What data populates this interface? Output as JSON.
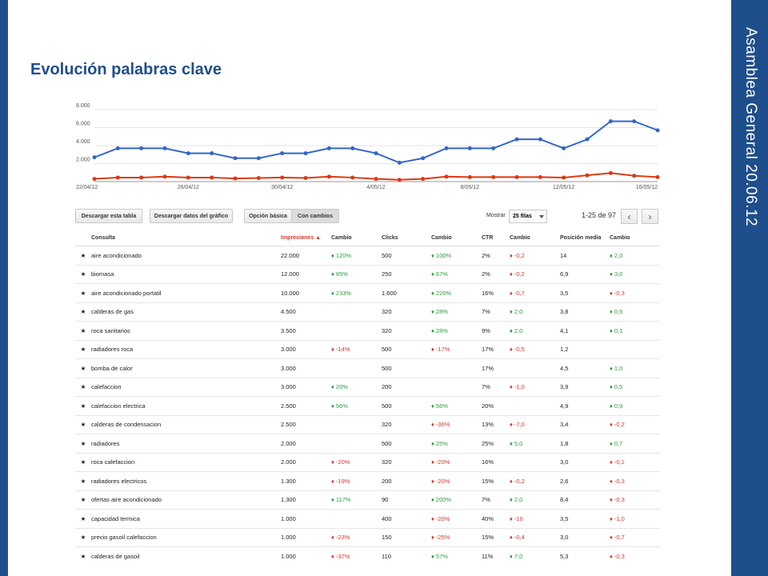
{
  "slide": {
    "title": "Evolución palabras clave",
    "side_title": "Asamblea General  20.06.12",
    "colors": {
      "accent": "#1f4e8c",
      "up": "#2a9d3a",
      "down": "#d9362b",
      "link": "#1155cc",
      "star": "#f1c232"
    }
  },
  "chart_data": {
    "type": "line",
    "x": [
      "22/04/12",
      "23/04/12",
      "24/04/12",
      "25/04/12",
      "26/04/12",
      "27/04/12",
      "28/04/12",
      "29/04/12",
      "30/04/12",
      "1/05/12",
      "2/05/12",
      "3/05/12",
      "4/05/12",
      "5/05/12",
      "6/05/12",
      "7/05/12",
      "8/05/12",
      "9/05/12",
      "10/05/12",
      "11/05/12",
      "12/05/12",
      "13/05/12",
      "14/05/12",
      "15/05/12",
      "16/05/12"
    ],
    "tick_labels": [
      "22/04/12",
      "26/04/12",
      "30/04/12",
      "4/05/12",
      "8/05/12",
      "12/05/12",
      "16/05/12"
    ],
    "y_ticks": [
      "8.000",
      "6.000",
      "4.000",
      "2.000"
    ],
    "ylim": [
      0,
      8000
    ],
    "grid": true,
    "series": [
      {
        "color": "#3366cc",
        "values": [
          2700,
          3700,
          3700,
          3700,
          3150,
          3150,
          2600,
          2600,
          3150,
          3150,
          3700,
          3700,
          3150,
          2100,
          2600,
          3700,
          3700,
          3700,
          4700,
          4700,
          3700,
          4700,
          6700,
          6700,
          5700
        ]
      },
      {
        "color": "#dc3912",
        "values": [
          300,
          450,
          450,
          550,
          450,
          450,
          350,
          400,
          450,
          400,
          550,
          450,
          300,
          200,
          300,
          550,
          500,
          500,
          500,
          500,
          450,
          700,
          950,
          650,
          500
        ]
      }
    ]
  },
  "toolbar": {
    "download_table": "Descargar esta tabla",
    "download_chart": "Descargar datos del gráfico",
    "basic_option": "Opción básica",
    "with_changes": "Con cambios",
    "show_label": "Mostrar",
    "rows_select": "25 filas",
    "pager_range": "1-25 de 97",
    "prev_icon": "‹",
    "next_icon": "›"
  },
  "table": {
    "headers": [
      "",
      "Consulta",
      "Impresiones ▲",
      "Cambio",
      "Clicks",
      "Cambio",
      "CTR",
      "Cambio",
      "Posición media",
      "Cambio"
    ],
    "rows": [
      [
        "aire acondicionado",
        "22.000",
        "♦ 120%",
        "500",
        "♦ 100%",
        "2%",
        "♦ -0,2",
        "14",
        "♦ 2,0"
      ],
      [
        "biomasa",
        "12.000",
        "♦ 85%",
        "250",
        "♦ 67%",
        "2%",
        "♦ -0,2",
        "6,9",
        "♦ 3,0"
      ],
      [
        "aire acondicionado portatil",
        "10.000",
        "♦ 233%",
        "1.600",
        "♦ 220%",
        "16%",
        "♦ -0,7",
        "3,5",
        "♦ -0,3"
      ],
      [
        "calderas de gas",
        "4.500",
        "",
        "320",
        "♦ 28%",
        "7%",
        "♦ 2,0",
        "3,8",
        "♦ 0,5"
      ],
      [
        "roca sanitarios",
        "3.500",
        "",
        "320",
        "♦ 28%",
        "9%",
        "♦ 2,0",
        "4,1",
        "♦ 0,1"
      ],
      [
        "radiadores roca",
        "3.000",
        "♦ -14%",
        "500",
        "♦ -17%",
        "17%",
        "♦ -0,5",
        "1,2",
        ""
      ],
      [
        "bomba de calor",
        "3.000",
        "",
        "500",
        "",
        "17%",
        "",
        "4,5",
        "♦ 1,0"
      ],
      [
        "calefaccion",
        "3.000",
        "♦ 20%",
        "200",
        "",
        "7%",
        "♦ -1,0",
        "3,9",
        "♦ 0,5"
      ],
      [
        "calefaccion electrica",
        "2.500",
        "♦ 56%",
        "500",
        "♦ 56%",
        "20%",
        "",
        "4,9",
        "♦ 0,9"
      ],
      [
        "calderas de condensacion",
        "2.500",
        "",
        "320",
        "♦ -36%",
        "13%",
        "♦ -7,0",
        "3,4",
        "♦ -0,2"
      ],
      [
        "radiadores",
        "2.000",
        "",
        "500",
        "♦ 25%",
        "25%",
        "♦ 5,0",
        "1,8",
        "♦ 0,7"
      ],
      [
        "roca calefaccion",
        "2.000",
        "♦ -20%",
        "320",
        "♦ -20%",
        "16%",
        "",
        "3,0",
        "♦ -0,1"
      ],
      [
        "radiadores electricos",
        "1.300",
        "♦ -19%",
        "200",
        "♦ -20%",
        "15%",
        "♦ -0,2",
        "2,6",
        "♦ -0,3"
      ],
      [
        "ofertas aire acondicionado",
        "1.300",
        "♦ 117%",
        "90",
        "♦ 200%",
        "7%",
        "♦ 2,0",
        "8,4",
        "♦ -0,3"
      ],
      [
        "capacidad termica",
        "1.000",
        "",
        "400",
        "♦ -20%",
        "40%",
        "♦ -10",
        "3,5",
        "♦ -1,0"
      ],
      [
        "precio gasoil calefaccion",
        "1.000",
        "♦ -23%",
        "150",
        "♦ -25%",
        "15%",
        "♦ -0,4",
        "3,0",
        "♦ -0,7"
      ],
      [
        "calderas de gasoil",
        "1.000",
        "♦ -37%",
        "110",
        "♦ 57%",
        "11%",
        "♦ 7,0",
        "5,3",
        "♦ -0,3"
      ]
    ]
  }
}
